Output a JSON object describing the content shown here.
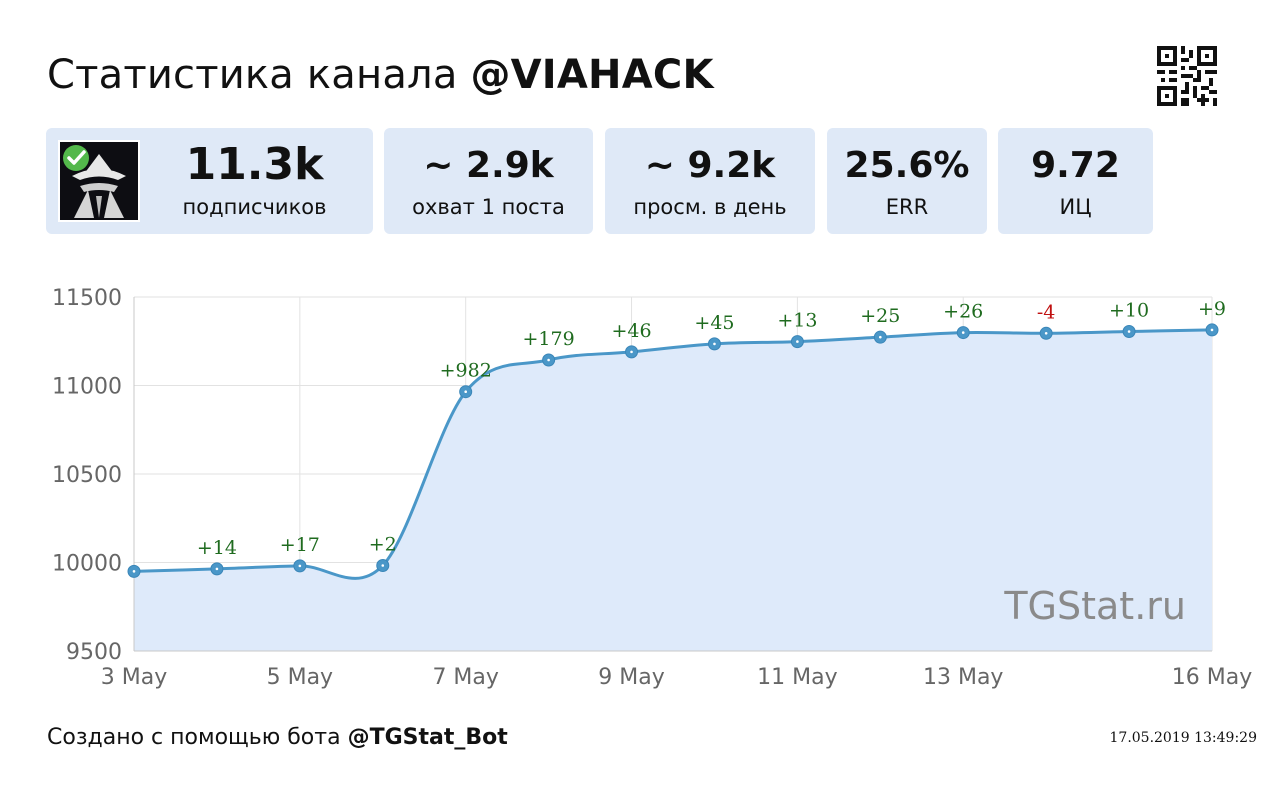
{
  "header": {
    "title_prefix": "Статистика канала ",
    "channel": "@VIAHACK"
  },
  "stats": [
    {
      "value": "11.3k",
      "label": "подписчиков"
    },
    {
      "value": "~ 2.9k",
      "label": "охват 1 поста"
    },
    {
      "value": "~ 9.2k",
      "label": "просм. в день"
    },
    {
      "value": "25.6%",
      "label": "ERR"
    },
    {
      "value": "9.72",
      "label": "ИЦ"
    }
  ],
  "icons": {
    "qr": "qr-code-icon",
    "avatar": "channel-avatar-icon",
    "verified": "verified-check-icon"
  },
  "colors": {
    "card_bg": "#dfe9f7",
    "line": "#4a97c8",
    "fill": "#deeafa",
    "gain": "#1f6b1f",
    "loss": "#c01010"
  },
  "chart_data": {
    "type": "area",
    "x": [
      "3 May",
      "4 May",
      "5 May",
      "6 May",
      "7 May",
      "8 May",
      "9 May",
      "10 May",
      "11 May",
      "12 May",
      "13 May",
      "14 May",
      "15 May",
      "16 May"
    ],
    "y": [
      9950,
      9964,
      9981,
      9983,
      10965,
      11144,
      11190,
      11235,
      11248,
      11273,
      11299,
      11295,
      11305,
      11314
    ],
    "deltas": [
      "",
      "+14",
      "+17",
      "+2",
      "+982",
      "+179",
      "+46",
      "+45",
      "+13",
      "+25",
      "+26",
      "-4",
      "+10",
      "+9"
    ],
    "x_ticks": [
      "3 May",
      "5 May",
      "7 May",
      "9 May",
      "11 May",
      "13 May",
      "16 May"
    ],
    "y_ticks": [
      9500,
      10000,
      10500,
      11000,
      11500
    ],
    "ylim": [
      9500,
      11500
    ],
    "grid": true,
    "watermark": "TGStat.ru"
  },
  "footer": {
    "prefix": "Создано с помощью бота ",
    "bot": "@TGStat_Bot",
    "timestamp": "17.05.2019 13:49:29"
  }
}
